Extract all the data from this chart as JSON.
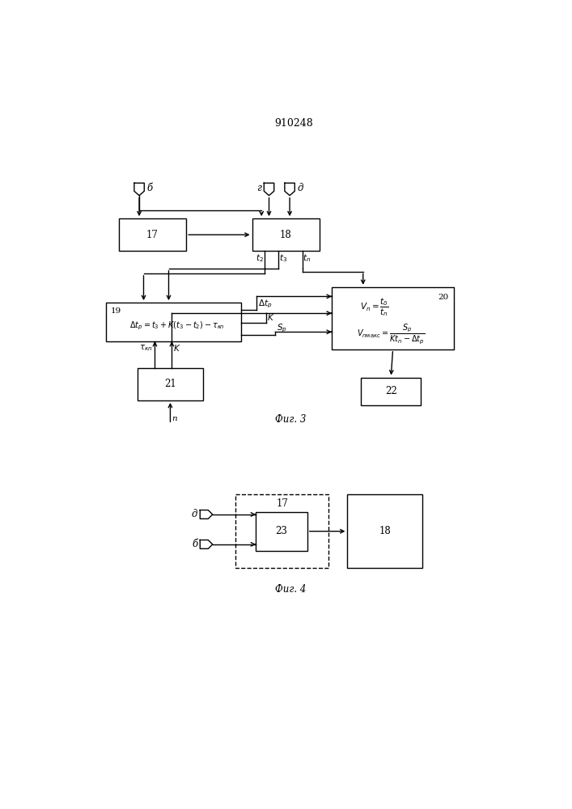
{
  "title": "910248",
  "fig3_label": "Фиг. 3",
  "fig4_label": "Фиг. 4"
}
